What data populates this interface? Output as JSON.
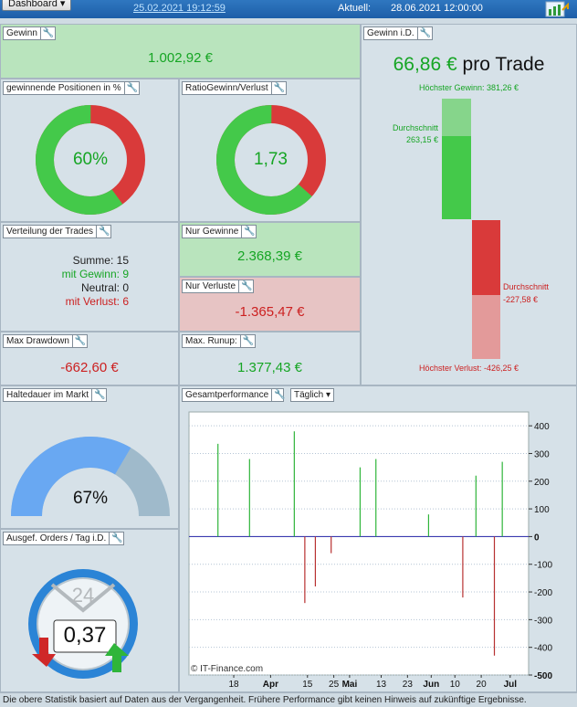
{
  "topbar": {
    "dashboard_label": "Dashboard ▾",
    "start_date": "25.02.2021 19:12:59",
    "aktuell_label": "Aktuell:",
    "aktuell_date": "28.06.2021 12:00:00",
    "chart_icon": "chart-report-icon"
  },
  "gewinn": {
    "title": "Gewinn",
    "value": "1.002,92 €"
  },
  "gewinn_id": {
    "title": "Gewinn i.D.",
    "value": "66,86 €",
    "suffix": "pro Trade",
    "max_gain": "Höchster Gewinn: 381,26 €",
    "avg_gain_label": "Durchschnitt",
    "avg_gain_value": "263,15 €",
    "avg_loss_label": "Durchschnitt",
    "avg_loss_value": "-227,58 €",
    "max_loss": "Höchster Verlust: -426,25 €"
  },
  "winning_positions": {
    "title": "gewinnende Positionen in %",
    "value": "60%",
    "fraction": 0.6
  },
  "ratio": {
    "title": "RatioGewinn/Verlust",
    "value": "1,73",
    "fraction": 0.634
  },
  "distribution": {
    "title": "Verteilung der Trades",
    "sum_label": "Summe:",
    "sum": "15",
    "win_label": "mit Gewinn:",
    "win": "9",
    "neutral_label": "Neutral:",
    "neutral": "0",
    "loss_label": "mit Verlust:",
    "loss": "6"
  },
  "only_gains": {
    "title": "Nur Gewinne",
    "value": "2.368,39 €"
  },
  "only_losses": {
    "title": "Nur Verluste",
    "value": "-1.365,47 €"
  },
  "max_drawdown": {
    "title": "Max Drawdown",
    "value": "-662,60 €"
  },
  "max_runup": {
    "title": "Max. Runup:",
    "value": "1.377,43 €"
  },
  "holding": {
    "title": "Haltedauer im Markt",
    "value": "67%",
    "fraction": 0.67
  },
  "orders": {
    "title": "Ausgef. Orders / Tag i.D.",
    "dial_number": "24",
    "value": "0,37"
  },
  "performance": {
    "title": "Gesamtperformance",
    "period": "Täglich ▾",
    "watermark": "© IT-Finance.com"
  },
  "chart_data": {
    "type": "bar",
    "title": "Gesamtperformance",
    "xlabel": "",
    "ylabel": "",
    "ylim": [
      -500,
      450
    ],
    "y_ticks": [
      "400",
      "300",
      "200",
      "100",
      "0",
      "-100",
      "-200",
      "-300",
      "-400",
      "-500"
    ],
    "x_ticks": [
      {
        "label": "18",
        "bold": false
      },
      {
        "label": "Apr",
        "bold": true
      },
      {
        "label": "15",
        "bold": false
      },
      {
        "label": "25",
        "bold": false
      },
      {
        "label": "Mai",
        "bold": true
      },
      {
        "label": "13",
        "bold": false
      },
      {
        "label": "23",
        "bold": false
      },
      {
        "label": "Jun",
        "bold": true
      },
      {
        "label": "10",
        "bold": false
      },
      {
        "label": "20",
        "bold": false
      },
      {
        "label": "Jul",
        "bold": true
      }
    ],
    "bars": [
      {
        "x": "2021-03-12",
        "value": 335
      },
      {
        "x": "2021-03-24",
        "value": 280
      },
      {
        "x": "2021-04-10",
        "value": 380
      },
      {
        "x": "2021-04-14",
        "value": -240
      },
      {
        "x": "2021-04-18",
        "value": -180
      },
      {
        "x": "2021-04-24",
        "value": -60
      },
      {
        "x": "2021-05-05",
        "value": 250
      },
      {
        "x": "2021-05-11",
        "value": 280
      },
      {
        "x": "2021-05-31",
        "value": 80
      },
      {
        "x": "2021-06-13",
        "value": -220
      },
      {
        "x": "2021-06-18",
        "value": 220
      },
      {
        "x": "2021-06-25",
        "value": -430
      },
      {
        "x": "2021-06-28",
        "value": 270
      }
    ],
    "colors": {
      "positive": "#2fb53a",
      "negative": "#b73030",
      "zero_line": "#3a3ab0"
    }
  },
  "footer": "Die obere Statistik basiert auf Daten aus der Vergangenheit. Frühere Performance gibt keinen Hinweis auf zukünftige Ergebnisse."
}
